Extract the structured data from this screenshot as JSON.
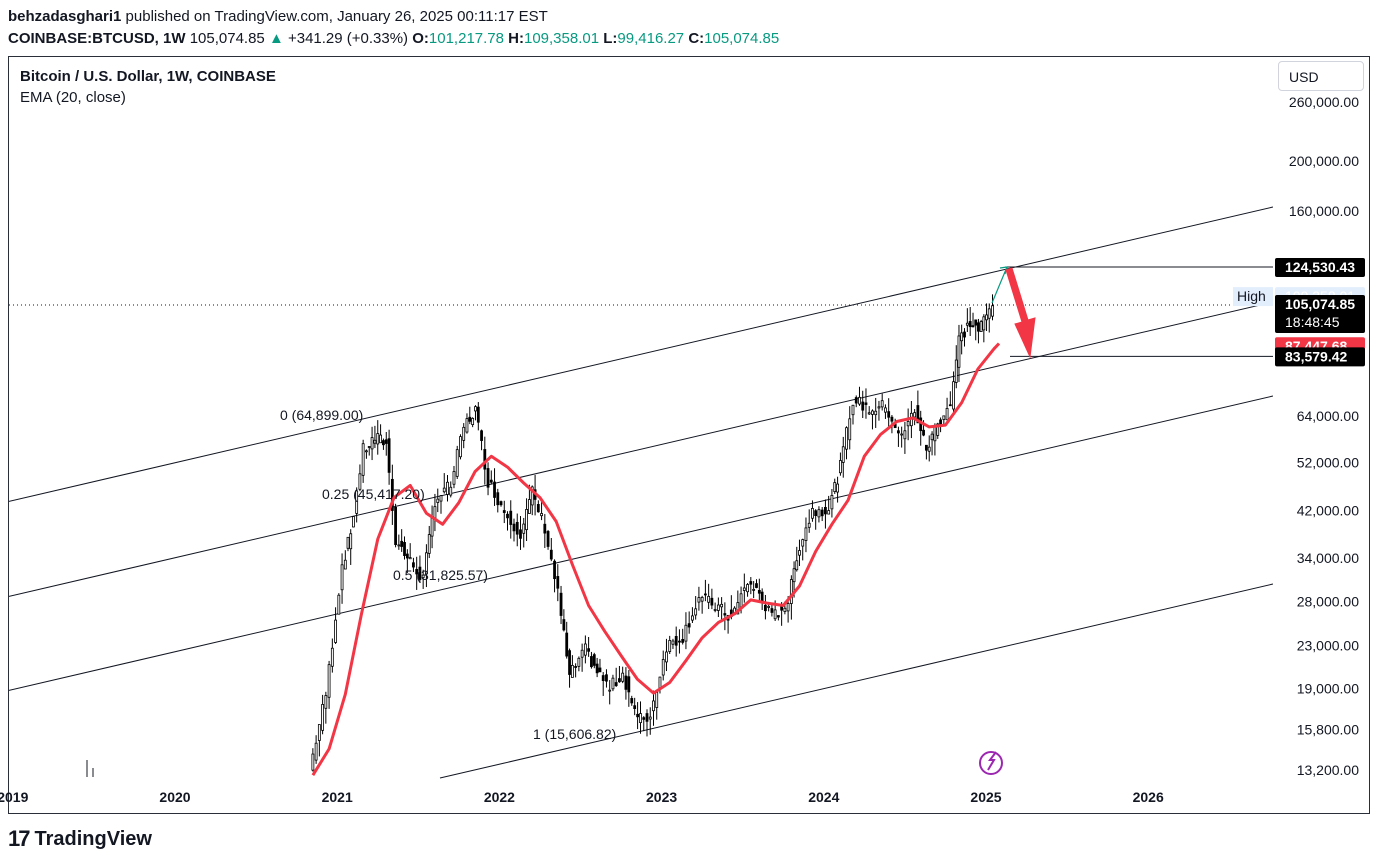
{
  "header": {
    "author": "behzadasghari1",
    "published_text": "published on TradingView.com, January 26, 2025 00:11:17 EST",
    "symbol": "COINBASE:BTCUSD, 1W",
    "last": "105,074.85",
    "change": "+341.29 (+0.33%)",
    "o_label": "O:",
    "o": "101,217.78",
    "h_label": "H:",
    "h": "109,358.01",
    "l_label": "L:",
    "l": "99,416.27",
    "c_label": "C:",
    "c": "105,074.85"
  },
  "legend": {
    "title": "Bitcoin / U.S. Dollar, 1W, COINBASE",
    "indicator": "EMA (20, close)"
  },
  "currency_button": "USD",
  "footer": {
    "brand": "TradingView"
  },
  "colors": {
    "ema": "#f23645",
    "candle": "#000000",
    "arrow": "#f23645",
    "target_line": "#089981",
    "tag_dark": "#000000",
    "tag_red": "#f23645",
    "tag_high": "#e3eefd"
  },
  "chart_data": {
    "type": "candlestick",
    "title": "Bitcoin / U.S. Dollar, 1W, COINBASE",
    "y_scale": "log",
    "y_ticks": [
      "260,000.00",
      "200,000.00",
      "160,000.00",
      "124,530.43",
      "105,074.85",
      "87,447.68",
      "83,579.42",
      "64,000.00",
      "52,000.00",
      "42,000.00",
      "34,000.00",
      "28,000.00",
      "23,000.00",
      "19,000.00",
      "15,800.00",
      "13,200.00"
    ],
    "x_ticks": [
      "2019",
      "2020",
      "2021",
      "2022",
      "2023",
      "2024",
      "2025",
      "2026"
    ],
    "price_tags": [
      {
        "label": "",
        "value": "124,530.43",
        "style": "dark"
      },
      {
        "label": "High",
        "value": "109,358.01",
        "style": "high"
      },
      {
        "label": "",
        "value": "105,074.85",
        "sub": "18:48:45",
        "style": "dark"
      },
      {
        "label": "",
        "value": "87,447.68",
        "style": "red"
      },
      {
        "label": "",
        "value": "83,579.42",
        "style": "dark"
      }
    ],
    "fib_labels": [
      "0 (64,899.00)",
      "0.25 (45,417.20)",
      "0.5 (31,825.57)",
      "1 (15,606.82)"
    ],
    "fib_values": [
      64899.0,
      45417.2,
      31825.57,
      15606.82
    ],
    "ema_series": [
      {
        "t": 2020.85,
        "v": 12900
      },
      {
        "t": 2020.95,
        "v": 14500
      },
      {
        "t": 2021.05,
        "v": 18500
      },
      {
        "t": 2021.15,
        "v": 26500
      },
      {
        "t": 2021.25,
        "v": 37000
      },
      {
        "t": 2021.35,
        "v": 44500
      },
      {
        "t": 2021.45,
        "v": 47000
      },
      {
        "t": 2021.55,
        "v": 41500
      },
      {
        "t": 2021.65,
        "v": 39500
      },
      {
        "t": 2021.75,
        "v": 43500
      },
      {
        "t": 2021.85,
        "v": 50000
      },
      {
        "t": 2021.95,
        "v": 53500
      },
      {
        "t": 2022.05,
        "v": 51000
      },
      {
        "t": 2022.15,
        "v": 47500
      },
      {
        "t": 2022.25,
        "v": 44500
      },
      {
        "t": 2022.35,
        "v": 40000
      },
      {
        "t": 2022.45,
        "v": 33000
      },
      {
        "t": 2022.55,
        "v": 27500
      },
      {
        "t": 2022.65,
        "v": 24500
      },
      {
        "t": 2022.75,
        "v": 22000
      },
      {
        "t": 2022.85,
        "v": 19800
      },
      {
        "t": 2022.95,
        "v": 18600
      },
      {
        "t": 2023.05,
        "v": 19500
      },
      {
        "t": 2023.15,
        "v": 21500
      },
      {
        "t": 2023.25,
        "v": 23800
      },
      {
        "t": 2023.35,
        "v": 25500
      },
      {
        "t": 2023.45,
        "v": 26500
      },
      {
        "t": 2023.55,
        "v": 28200
      },
      {
        "t": 2023.65,
        "v": 27800
      },
      {
        "t": 2023.75,
        "v": 27500
      },
      {
        "t": 2023.85,
        "v": 30000
      },
      {
        "t": 2023.95,
        "v": 35000
      },
      {
        "t": 2024.05,
        "v": 39500
      },
      {
        "t": 2024.15,
        "v": 44000
      },
      {
        "t": 2024.25,
        "v": 53500
      },
      {
        "t": 2024.35,
        "v": 59000
      },
      {
        "t": 2024.45,
        "v": 62500
      },
      {
        "t": 2024.55,
        "v": 63500
      },
      {
        "t": 2024.65,
        "v": 61000
      },
      {
        "t": 2024.75,
        "v": 61500
      },
      {
        "t": 2024.85,
        "v": 68000
      },
      {
        "t": 2024.95,
        "v": 79000
      },
      {
        "t": 2025.05,
        "v": 86500
      },
      {
        "t": 2025.08,
        "v": 88500
      }
    ],
    "price_path": [
      {
        "t": 2020.85,
        "v": 13200
      },
      {
        "t": 2020.95,
        "v": 18500
      },
      {
        "t": 2021.05,
        "v": 33000
      },
      {
        "t": 2021.1,
        "v": 38000
      },
      {
        "t": 2021.18,
        "v": 55000
      },
      {
        "t": 2021.25,
        "v": 58000
      },
      {
        "t": 2021.32,
        "v": 57000
      },
      {
        "t": 2021.38,
        "v": 37000
      },
      {
        "t": 2021.45,
        "v": 34000
      },
      {
        "t": 2021.55,
        "v": 31000
      },
      {
        "t": 2021.62,
        "v": 44000
      },
      {
        "t": 2021.72,
        "v": 47000
      },
      {
        "t": 2021.8,
        "v": 61000
      },
      {
        "t": 2021.87,
        "v": 66000
      },
      {
        "t": 2021.95,
        "v": 48000
      },
      {
        "t": 2022.05,
        "v": 42000
      },
      {
        "t": 2022.15,
        "v": 38000
      },
      {
        "t": 2022.22,
        "v": 45500
      },
      {
        "t": 2022.3,
        "v": 39000
      },
      {
        "t": 2022.38,
        "v": 29000
      },
      {
        "t": 2022.45,
        "v": 20000
      },
      {
        "t": 2022.55,
        "v": 22500
      },
      {
        "t": 2022.62,
        "v": 20500
      },
      {
        "t": 2022.7,
        "v": 19000
      },
      {
        "t": 2022.78,
        "v": 20300
      },
      {
        "t": 2022.87,
        "v": 16500
      },
      {
        "t": 2022.95,
        "v": 16800
      },
      {
        "t": 2023.05,
        "v": 23000
      },
      {
        "t": 2023.15,
        "v": 24000
      },
      {
        "t": 2023.25,
        "v": 28500
      },
      {
        "t": 2023.35,
        "v": 27500
      },
      {
        "t": 2023.45,
        "v": 26000
      },
      {
        "t": 2023.55,
        "v": 30500
      },
      {
        "t": 2023.62,
        "v": 29000
      },
      {
        "t": 2023.7,
        "v": 26000
      },
      {
        "t": 2023.8,
        "v": 28000
      },
      {
        "t": 2023.85,
        "v": 34500
      },
      {
        "t": 2023.95,
        "v": 42000
      },
      {
        "t": 2024.05,
        "v": 42500
      },
      {
        "t": 2024.12,
        "v": 51000
      },
      {
        "t": 2024.2,
        "v": 69000
      },
      {
        "t": 2024.3,
        "v": 66000
      },
      {
        "t": 2024.4,
        "v": 67000
      },
      {
        "t": 2024.5,
        "v": 58000
      },
      {
        "t": 2024.58,
        "v": 66000
      },
      {
        "t": 2024.65,
        "v": 55000
      },
      {
        "t": 2024.72,
        "v": 62000
      },
      {
        "t": 2024.8,
        "v": 68000
      },
      {
        "t": 2024.85,
        "v": 90000
      },
      {
        "t": 2024.92,
        "v": 97000
      },
      {
        "t": 2024.97,
        "v": 94000
      },
      {
        "t": 2025.02,
        "v": 100000
      },
      {
        "t": 2025.06,
        "v": 105074.85
      }
    ]
  }
}
